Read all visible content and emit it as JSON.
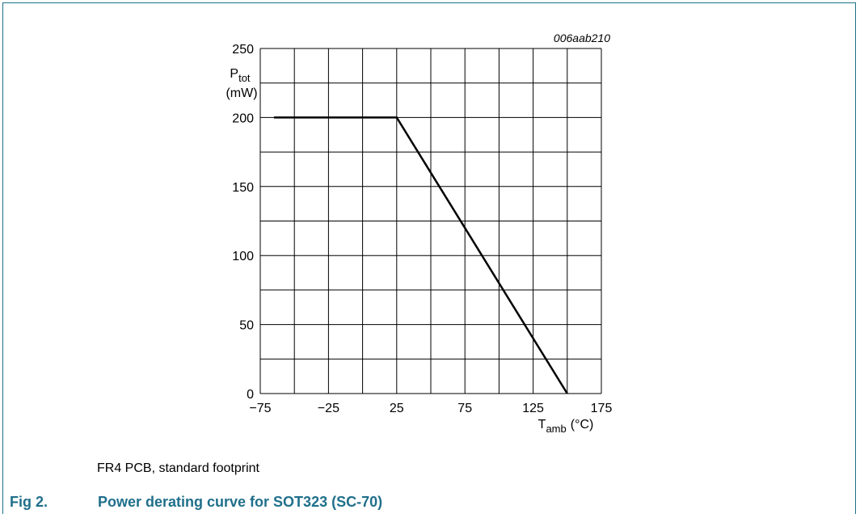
{
  "chart_data": {
    "type": "line",
    "figure_code": "006aab210",
    "ylabel": {
      "symbol": "P",
      "subscript": "tot",
      "unit": "(mW)"
    },
    "xlabel": {
      "symbol": "T",
      "subscript": "amb",
      "unit": "(°C)"
    },
    "xlim": [
      -75,
      175
    ],
    "ylim": [
      0,
      250
    ],
    "x_ticks": [
      -75,
      -25,
      25,
      75,
      125,
      175
    ],
    "x_tick_labels": [
      "−75",
      "−25",
      "25",
      "75",
      "125",
      "175"
    ],
    "y_ticks": [
      0,
      50,
      100,
      150,
      200,
      250
    ],
    "y_tick_labels": [
      "0",
      "50",
      "100",
      "150",
      "200",
      "250"
    ],
    "grid": true,
    "series": [
      {
        "x": [
          -65,
          25,
          150
        ],
        "y": [
          200,
          200,
          0
        ]
      }
    ]
  },
  "note": "FR4 PCB, standard footprint",
  "caption": {
    "number": "Fig 2.",
    "title": "Power derating curve for SOT323 (SC-70)"
  },
  "colors": {
    "frame": "#1f6f8b",
    "caption": "#1f6f8b",
    "grid": "#000000",
    "line": "#000000"
  }
}
